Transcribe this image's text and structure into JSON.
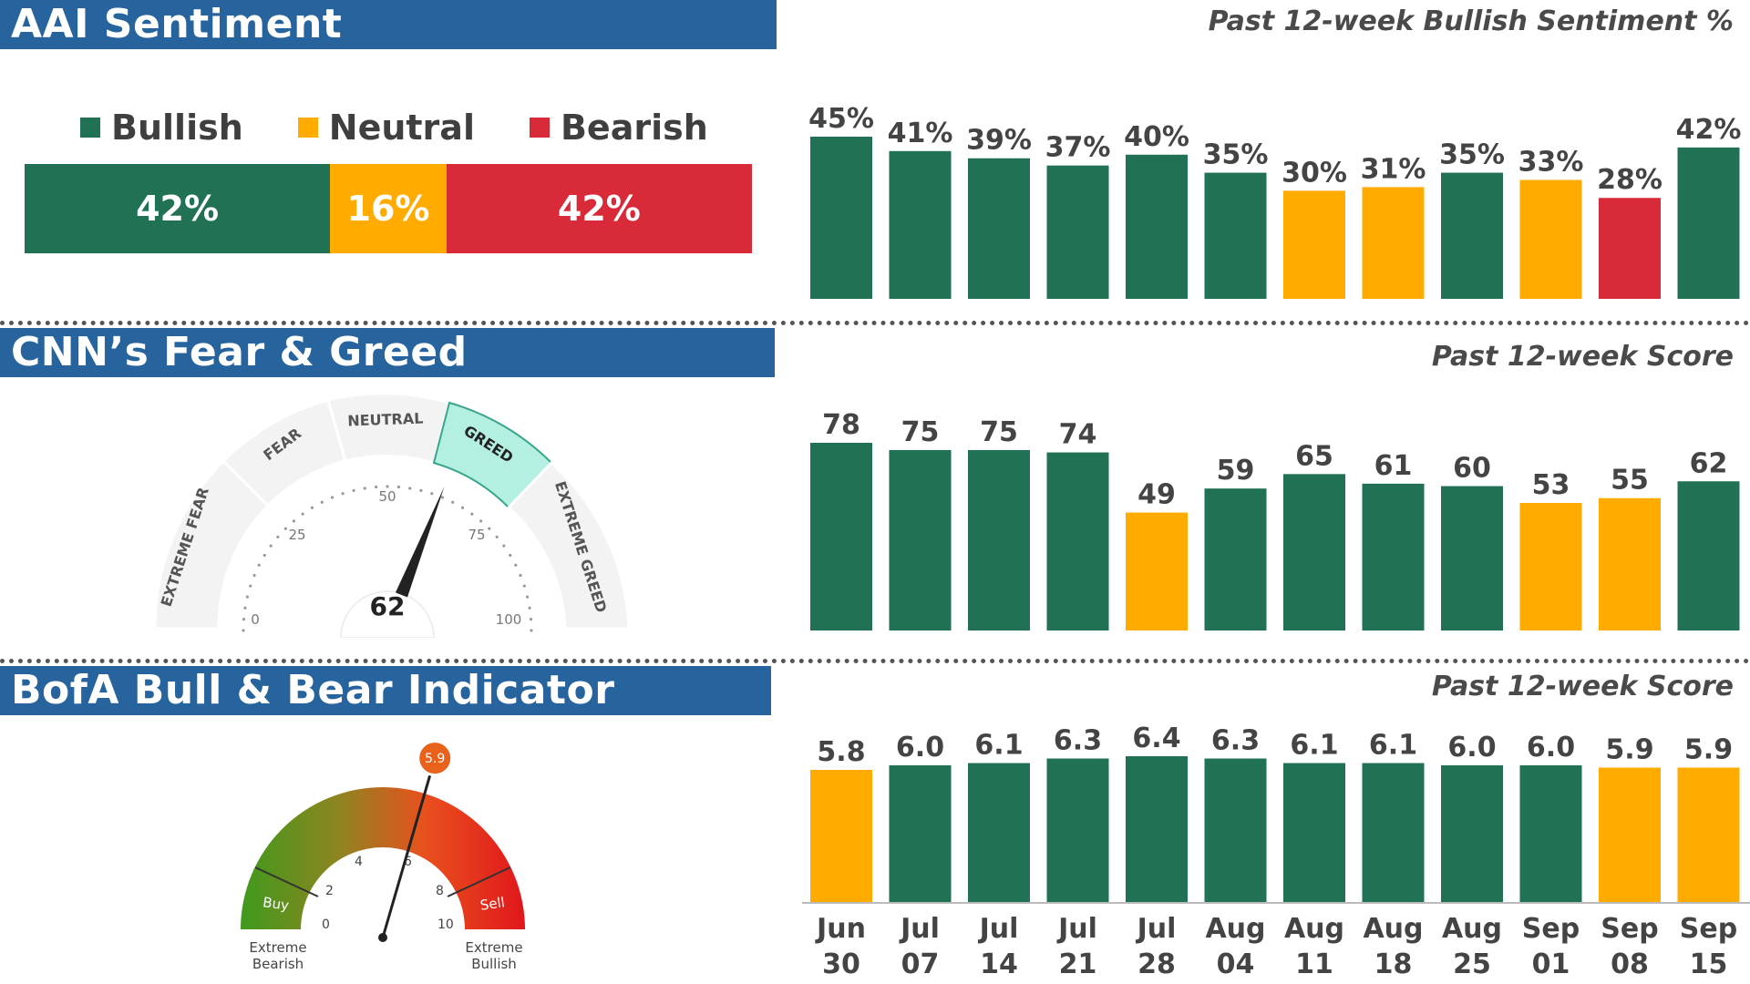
{
  "colors": {
    "bullish": "#217154",
    "neutral": "#ffab00",
    "bearish": "#d82a38",
    "banner": "#27639d"
  },
  "aai": {
    "title": "AAI Sentiment",
    "subtitle": "Past 12-week Bullish Sentiment %",
    "legend": [
      "Bullish",
      "Neutral",
      "Bearish"
    ],
    "current": [
      {
        "label": "42%",
        "value": 42,
        "status": "bullish"
      },
      {
        "label": "16%",
        "value": 16,
        "status": "neutral"
      },
      {
        "label": "42%",
        "value": 42,
        "status": "bearish"
      }
    ]
  },
  "cnn": {
    "title": "CNN’s Fear & Greed",
    "subtitle": "Past 12-week Score",
    "gauge": {
      "value": 62,
      "zones": [
        "EXTREME FEAR",
        "FEAR",
        "NEUTRAL",
        "GREED",
        "EXTREME GREED"
      ],
      "ticks": [
        "0",
        "25",
        "50",
        "75",
        "100"
      ]
    }
  },
  "bofa": {
    "title": "BofA Bull & Bear Indicator",
    "subtitle": "Past 12-week Score",
    "gauge": {
      "value": 5.9,
      "value_label": "5.9",
      "ticks": [
        "0",
        "2",
        "4",
        "6",
        "8",
        "10"
      ],
      "buy_label": "Buy",
      "sell_label": "Sell",
      "left_caption": [
        "Extreme",
        "Bearish"
      ],
      "right_caption": [
        "Extreme",
        "Bullish"
      ]
    }
  },
  "weeks": [
    [
      "Jun",
      "30"
    ],
    [
      "Jul",
      "07"
    ],
    [
      "Jul",
      "14"
    ],
    [
      "Jul",
      "21"
    ],
    [
      "Jul",
      "28"
    ],
    [
      "Aug",
      "04"
    ],
    [
      "Aug",
      "11"
    ],
    [
      "Aug",
      "18"
    ],
    [
      "Aug",
      "25"
    ],
    [
      "Sep",
      "01"
    ],
    [
      "Sep",
      "08"
    ],
    [
      "Sep",
      "15"
    ]
  ],
  "chart_data": [
    {
      "type": "bar",
      "title": "Past 12-week Bullish Sentiment %",
      "categories": [
        "Jun 30",
        "Jul 07",
        "Jul 14",
        "Jul 21",
        "Jul 28",
        "Aug 04",
        "Aug 11",
        "Aug 18",
        "Aug 25",
        "Sep 01",
        "Sep 08",
        "Sep 15"
      ],
      "values": [
        45,
        41,
        39,
        37,
        40,
        35,
        30,
        31,
        35,
        33,
        28,
        42
      ],
      "labels": [
        "45%",
        "41%",
        "39%",
        "37%",
        "40%",
        "35%",
        "30%",
        "31%",
        "35%",
        "33%",
        "28%",
        "42%"
      ],
      "status": [
        "bullish",
        "bullish",
        "bullish",
        "bullish",
        "bullish",
        "bullish",
        "neutral",
        "neutral",
        "bullish",
        "neutral",
        "bearish",
        "bullish"
      ],
      "ylim": [
        0,
        45
      ]
    },
    {
      "type": "bar",
      "title": "Past 12-week Score",
      "categories": [
        "Jun 30",
        "Jul 07",
        "Jul 14",
        "Jul 21",
        "Jul 28",
        "Aug 04",
        "Aug 11",
        "Aug 18",
        "Aug 25",
        "Sep 01",
        "Sep 08",
        "Sep 15"
      ],
      "values": [
        78,
        75,
        75,
        74,
        49,
        59,
        65,
        61,
        60,
        53,
        55,
        62
      ],
      "labels": [
        "78",
        "75",
        "75",
        "74",
        "49",
        "59",
        "65",
        "61",
        "60",
        "53",
        "55",
        "62"
      ],
      "status": [
        "bullish",
        "bullish",
        "bullish",
        "bullish",
        "neutral",
        "bullish",
        "bullish",
        "bullish",
        "bullish",
        "neutral",
        "neutral",
        "bullish"
      ],
      "ylim": [
        0,
        78
      ]
    },
    {
      "type": "bar",
      "title": "Past 12-week Score",
      "categories": [
        "Jun 30",
        "Jul 07",
        "Jul 14",
        "Jul 21",
        "Jul 28",
        "Aug 04",
        "Aug 11",
        "Aug 18",
        "Aug 25",
        "Sep 01",
        "Sep 08",
        "Sep 15"
      ],
      "values": [
        5.8,
        6.0,
        6.1,
        6.3,
        6.4,
        6.3,
        6.1,
        6.1,
        6.0,
        6.0,
        5.9,
        5.9
      ],
      "labels": [
        "5.8",
        "6.0",
        "6.1",
        "6.3",
        "6.4",
        "6.3",
        "6.1",
        "6.1",
        "6.0",
        "6.0",
        "5.9",
        "5.9"
      ],
      "status": [
        "neutral",
        "bullish",
        "bullish",
        "bullish",
        "bullish",
        "bullish",
        "bullish",
        "bullish",
        "bullish",
        "bullish",
        "neutral",
        "neutral"
      ],
      "ylim": [
        0,
        6.4
      ]
    }
  ]
}
